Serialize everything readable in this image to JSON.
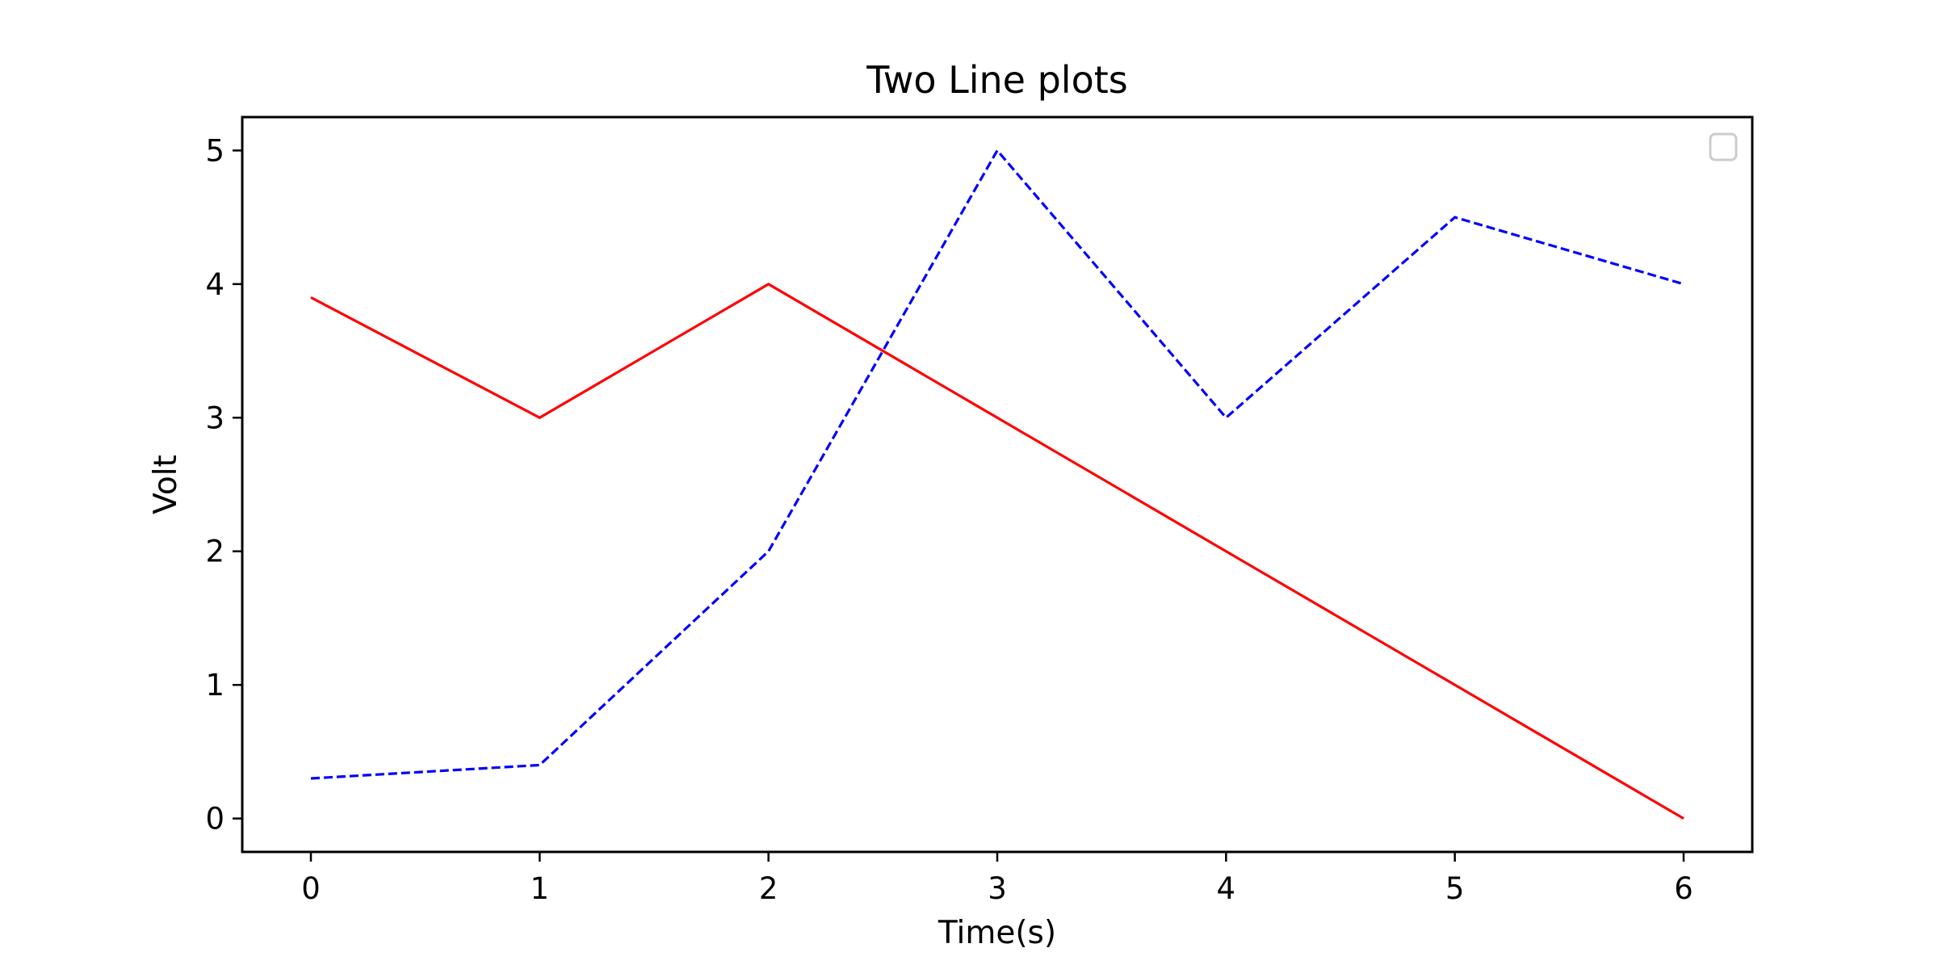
{
  "chart_data": {
    "type": "line",
    "title": "Two Line plots",
    "xlabel": "Time(s)",
    "ylabel": "Volt",
    "x": [
      0,
      1,
      2,
      3,
      4,
      5,
      6
    ],
    "xlim": [
      -0.3,
      6.3
    ],
    "ylim": [
      -0.25,
      5.25
    ],
    "xticks": [
      0,
      1,
      2,
      3,
      4,
      5,
      6
    ],
    "yticks": [
      0,
      1,
      2,
      3,
      4,
      5
    ],
    "grid": false,
    "legend": {
      "position": "top-right",
      "entries": []
    },
    "series": [
      {
        "values": [
          3.9,
          3.0,
          4.0,
          3.0,
          2.0,
          1.0,
          0.0
        ],
        "color": "#ff0000",
        "style": "solid"
      },
      {
        "values": [
          0.3,
          0.4,
          2.0,
          5.0,
          3.0,
          4.5,
          4.0
        ],
        "color": "#0000ff",
        "style": "dashed"
      }
    ]
  }
}
